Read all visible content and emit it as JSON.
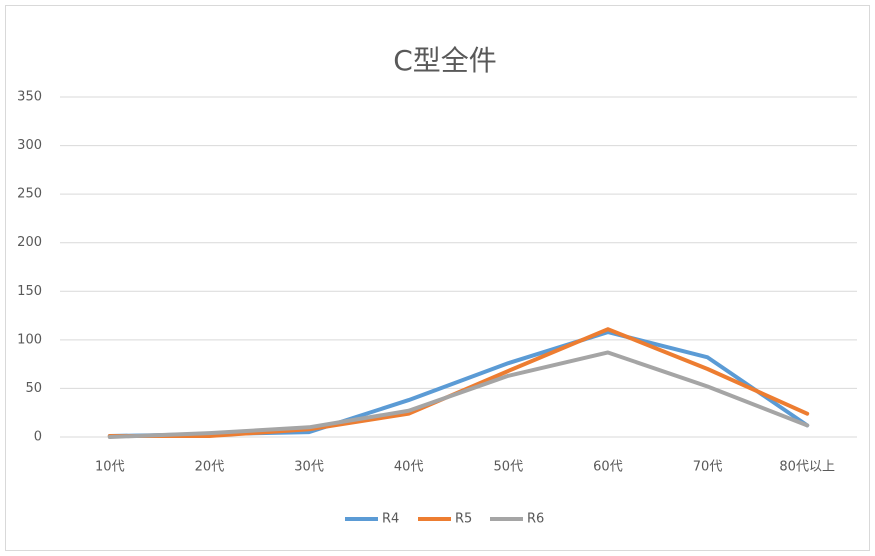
{
  "chart_data": {
    "type": "line",
    "title": "C型全件",
    "categories": [
      "10代",
      "20代",
      "30代",
      "40代",
      "50代",
      "60代",
      "70代",
      "80代以上"
    ],
    "series": [
      {
        "name": "R4",
        "color": "#5b9bd5",
        "values": [
          1,
          3,
          5,
          38,
          76,
          108,
          82,
          12
        ]
      },
      {
        "name": "R5",
        "color": "#ed7d31",
        "values": [
          1,
          1,
          8,
          24,
          68,
          111,
          70,
          24
        ]
      },
      {
        "name": "R6",
        "color": "#a5a5a5",
        "values": [
          0,
          4,
          10,
          27,
          63,
          87,
          52,
          12
        ]
      }
    ],
    "ylim": [
      0,
      350
    ],
    "yticks": [
      0,
      50,
      100,
      150,
      200,
      250,
      300,
      350
    ],
    "grid": true,
    "legend": "bottom"
  }
}
